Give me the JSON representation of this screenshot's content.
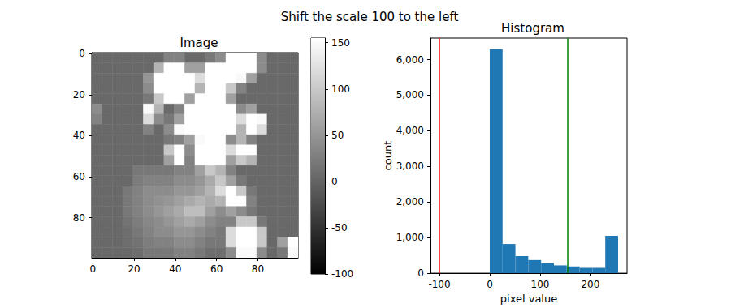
{
  "title": "Shift the scale 100 to the left",
  "chart_data": [
    {
      "type": "heatmap",
      "title": "Image",
      "xlim": [
        -0.5,
        99.5
      ],
      "ylim": [
        99.5,
        -0.5
      ],
      "xticks": [
        0,
        20,
        40,
        60,
        80
      ],
      "yticks": [
        0,
        20,
        40,
        60,
        80
      ],
      "cells": [
        [
          5,
          5,
          5,
          5,
          5,
          5,
          5,
          30,
          30,
          5,
          5,
          20,
          40,
          200,
          255,
          200,
          40,
          5,
          5,
          5
        ],
        [
          5,
          5,
          5,
          5,
          5,
          5,
          80,
          255,
          255,
          60,
          60,
          220,
          230,
          220,
          255,
          200,
          40,
          5,
          5,
          5
        ],
        [
          5,
          5,
          5,
          5,
          5,
          50,
          255,
          255,
          255,
          200,
          120,
          255,
          255,
          220,
          150,
          60,
          5,
          5,
          5,
          5
        ],
        [
          5,
          5,
          5,
          5,
          5,
          40,
          255,
          255,
          255,
          180,
          80,
          230,
          230,
          100,
          30,
          5,
          5,
          5,
          5,
          5
        ],
        [
          5,
          5,
          5,
          5,
          5,
          20,
          100,
          220,
          180,
          60,
          200,
          255,
          200,
          60,
          5,
          5,
          5,
          5,
          5,
          5
        ],
        [
          40,
          5,
          5,
          5,
          5,
          150,
          80,
          5,
          30,
          180,
          255,
          255,
          255,
          200,
          40,
          60,
          5,
          5,
          5,
          5
        ],
        [
          30,
          5,
          5,
          5,
          5,
          120,
          40,
          20,
          60,
          255,
          255,
          255,
          255,
          255,
          120,
          230,
          150,
          5,
          5,
          5
        ],
        [
          5,
          5,
          5,
          5,
          5,
          30,
          5,
          40,
          150,
          200,
          255,
          255,
          255,
          200,
          80,
          200,
          120,
          5,
          5,
          5
        ],
        [
          5,
          5,
          5,
          5,
          5,
          5,
          5,
          20,
          30,
          60,
          150,
          255,
          200,
          40,
          80,
          30,
          5,
          5,
          5,
          5
        ],
        [
          5,
          5,
          5,
          5,
          5,
          5,
          5,
          100,
          255,
          40,
          255,
          255,
          255,
          120,
          255,
          220,
          5,
          5,
          5,
          5
        ],
        [
          5,
          5,
          5,
          5,
          5,
          5,
          5,
          60,
          200,
          30,
          200,
          255,
          255,
          60,
          100,
          80,
          5,
          5,
          5,
          5
        ],
        [
          5,
          5,
          5,
          5,
          20,
          20,
          20,
          20,
          30,
          30,
          60,
          100,
          80,
          30,
          5,
          5,
          5,
          5,
          5,
          5
        ],
        [
          5,
          5,
          5,
          5,
          25,
          30,
          30,
          30,
          40,
          40,
          50,
          70,
          100,
          60,
          20,
          5,
          5,
          5,
          5,
          5
        ],
        [
          5,
          5,
          5,
          20,
          30,
          40,
          40,
          40,
          50,
          50,
          60,
          80,
          120,
          200,
          100,
          20,
          5,
          5,
          5,
          5
        ],
        [
          5,
          5,
          5,
          20,
          30,
          40,
          45,
          50,
          60,
          70,
          80,
          70,
          80,
          255,
          180,
          30,
          5,
          5,
          5,
          5
        ],
        [
          5,
          5,
          5,
          20,
          30,
          40,
          50,
          60,
          70,
          90,
          90,
          60,
          40,
          60,
          40,
          20,
          5,
          5,
          5,
          5
        ],
        [
          5,
          5,
          5,
          15,
          25,
          35,
          40,
          50,
          60,
          70,
          60,
          40,
          30,
          30,
          100,
          100,
          20,
          5,
          5,
          5
        ],
        [
          5,
          5,
          5,
          10,
          20,
          30,
          40,
          40,
          50,
          50,
          40,
          30,
          20,
          120,
          255,
          255,
          100,
          5,
          5,
          5
        ],
        [
          5,
          5,
          5,
          10,
          15,
          25,
          30,
          30,
          40,
          40,
          30,
          20,
          20,
          120,
          255,
          255,
          100,
          5,
          60,
          220
        ],
        [
          5,
          5,
          5,
          5,
          10,
          20,
          20,
          20,
          30,
          30,
          20,
          10,
          10,
          40,
          150,
          150,
          40,
          5,
          20,
          150
        ]
      ],
      "colorbar": {
        "range": [
          -100,
          155
        ],
        "ticks": [
          -100,
          -50,
          0,
          50,
          100,
          150
        ]
      }
    },
    {
      "type": "histogram",
      "title": "Histogram",
      "x_label": "pixel value",
      "y_label": "count",
      "bins": [
        0,
        25.5,
        51,
        76.5,
        102,
        127.5,
        153,
        178.5,
        204,
        229.5,
        255
      ],
      "values": [
        6290,
        820,
        480,
        370,
        280,
        220,
        190,
        150,
        150,
        1050
      ],
      "color": "#1f77b4",
      "xlim": [
        -117.75,
        272.75
      ],
      "ylim": [
        0,
        6604.5
      ],
      "xticks": [
        -100,
        0,
        100,
        200
      ],
      "yticks": [
        0,
        1000,
        2000,
        3000,
        4000,
        5000,
        6000
      ],
      "vlines": [
        {
          "x": -100,
          "color": "#ff0000"
        },
        {
          "x": 155,
          "color": "#008000"
        }
      ]
    }
  ]
}
